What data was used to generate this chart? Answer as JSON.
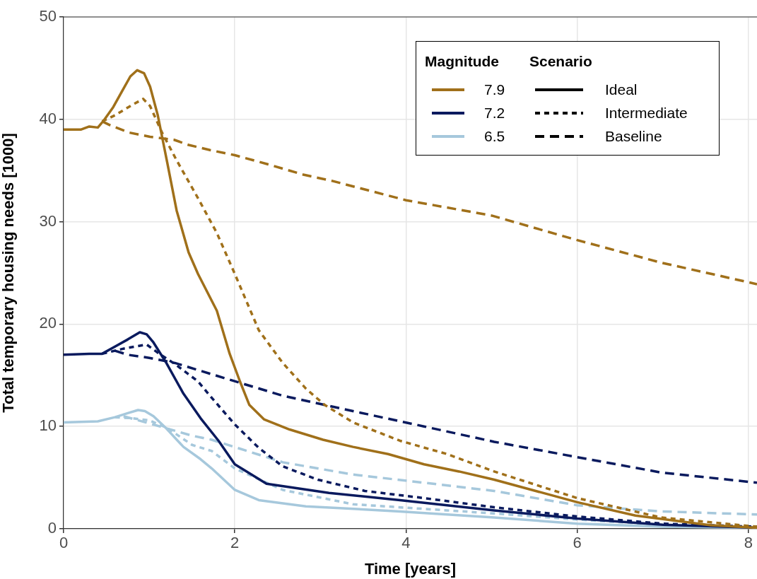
{
  "chart_data": {
    "type": "line",
    "xlabel": "Time [years]",
    "ylabel": "Total temporary housing needs [1000]",
    "legend_title": "Magnitude",
    "legend": "top right",
    "grid": true,
    "xlim": [
      0,
      8.1
    ],
    "xticks": [
      0,
      2,
      4,
      6,
      8
    ],
    "ylim": [
      0,
      50
    ],
    "yticks": [
      0,
      10,
      20,
      30,
      40,
      50
    ],
    "annotations": [
      "Scenario",
      "Ideal",
      "Intermediate",
      "Baseline"
    ],
    "series": [
      {
        "name": "7.9",
        "color": "#a0701a",
        "line_style": "solid",
        "x": [
          0,
          0.2,
          0.3,
          0.4,
          0.47,
          0.58,
          0.68,
          0.78,
          0.86,
          0.94,
          1.01,
          1.1,
          1.21,
          1.32,
          1.46,
          1.57,
          1.79,
          1.94,
          2.06,
          2.17,
          2.34,
          2.64,
          3.03,
          3.38,
          3.79,
          4.21,
          4.62,
          5.03,
          6.0,
          6.68,
          7.56,
          8.1
        ],
        "values": [
          39,
          39,
          39.3,
          39.2,
          39.9,
          41.2,
          42.7,
          44.2,
          44.8,
          44.5,
          43.2,
          40.4,
          35.8,
          31.1,
          27,
          24.9,
          21.3,
          17.1,
          14.4,
          12.1,
          10.7,
          9.7,
          8.7,
          8.0,
          7.3,
          6.3,
          5.6,
          4.8,
          2.6,
          1.3,
          0.35,
          0.1
        ]
      },
      {
        "color": "#a0701a",
        "line_style": "dotted",
        "x": [
          0.45,
          0.6,
          0.8,
          0.93,
          1.01,
          1.15,
          1.32,
          1.57,
          1.79,
          2.0,
          2.28,
          2.56,
          2.83,
          3.05,
          3.38,
          3.93,
          4.48,
          5.03,
          6.0,
          6.98,
          8.1
        ],
        "values": [
          39.8,
          40.4,
          41.4,
          42.0,
          41.3,
          38.7,
          36,
          32.3,
          28.9,
          24.9,
          19.4,
          16.2,
          13.7,
          12.1,
          10.4,
          8.6,
          7.3,
          5.6,
          3.0,
          1.1,
          0.2
        ]
      },
      {
        "color": "#a0701a",
        "line_style": "dashed",
        "x": [
          0.45,
          0.55,
          0.77,
          1.01,
          1.29,
          1.46,
          1.71,
          2.0,
          2.39,
          2.8,
          3.13,
          4.0,
          5.0,
          6.0,
          6.98,
          8.1
        ],
        "values": [
          39.8,
          39.4,
          38.7,
          38.3,
          38,
          37.5,
          37,
          36.5,
          35.6,
          34.6,
          34.0,
          32.1,
          30.6,
          28.2,
          26.0,
          23.9
        ]
      },
      {
        "name": "7.2",
        "color": "#0a1a5e",
        "line_style": "solid",
        "x": [
          0,
          0.3,
          0.45,
          0.6,
          0.75,
          0.89,
          0.97,
          1.05,
          1.2,
          1.4,
          1.6,
          1.81,
          2.0,
          2.37,
          3.1,
          3.93,
          5.03,
          6.0,
          7.0,
          8.1
        ],
        "values": [
          17,
          17.1,
          17.1,
          17.8,
          18.5,
          19.2,
          19.0,
          18.2,
          16.2,
          13.2,
          10.8,
          8.6,
          6.3,
          4.4,
          3.5,
          2.8,
          1.8,
          1.0,
          0.4,
          0.1
        ]
      },
      {
        "color": "#0a1a5e",
        "line_style": "dotted",
        "x": [
          0.45,
          0.7,
          0.97,
          1.1,
          1.3,
          1.57,
          1.73,
          2.0,
          2.28,
          2.56,
          2.97,
          3.52,
          4.21,
          5.03,
          6.0,
          7.0,
          8.1
        ],
        "values": [
          17.1,
          17.6,
          18.0,
          17.2,
          16.1,
          14.4,
          12.8,
          10.2,
          7.9,
          6.1,
          4.8,
          3.7,
          3.0,
          2.1,
          1.2,
          0.5,
          0.2
        ]
      },
      {
        "color": "#0a1a5e",
        "line_style": "dashed",
        "x": [
          0.6,
          0.75,
          1.0,
          1.3,
          1.73,
          2.56,
          3.38,
          4.21,
          5.03,
          6.0,
          6.98,
          8.1
        ],
        "values": [
          17.4,
          17,
          16.7,
          16.2,
          15.1,
          13.0,
          11.5,
          10.0,
          8.5,
          7.0,
          5.5,
          4.5
        ]
      },
      {
        "name": "6.5",
        "color": "#a6c8dc",
        "line_style": "solid",
        "x": [
          0,
          0.4,
          0.6,
          0.75,
          0.87,
          0.95,
          1.05,
          1.2,
          1.4,
          1.6,
          1.73,
          2.0,
          2.28,
          2.83,
          3.93,
          5.03,
          6.0,
          7.0,
          8.1
        ],
        "values": [
          10.4,
          10.5,
          10.9,
          11.3,
          11.6,
          11.5,
          11.0,
          9.8,
          8.0,
          6.8,
          5.9,
          3.8,
          2.8,
          2.2,
          1.7,
          1.1,
          0.5,
          0.2,
          0.1
        ]
      },
      {
        "color": "#a6c8dc",
        "line_style": "dotted",
        "x": [
          0.6,
          0.8,
          1.0,
          1.2,
          1.5,
          1.73,
          2.0,
          2.56,
          3.38,
          4.48,
          5.03,
          6.0,
          7.0,
          8.1
        ],
        "values": [
          10.9,
          10.8,
          10.6,
          9.9,
          8.2,
          7.6,
          5.9,
          3.8,
          2.4,
          1.8,
          1.5,
          0.9,
          0.4,
          0.1
        ]
      },
      {
        "color": "#a6c8dc",
        "line_style": "dashed",
        "x": [
          0.7,
          1.0,
          1.5,
          1.73,
          2.56,
          3.38,
          4.21,
          5.03,
          6.0,
          6.98,
          8.1
        ],
        "values": [
          11,
          10.3,
          9.1,
          8.7,
          6.5,
          5.3,
          4.5,
          3.7,
          2.3,
          1.7,
          1.4
        ]
      }
    ]
  }
}
